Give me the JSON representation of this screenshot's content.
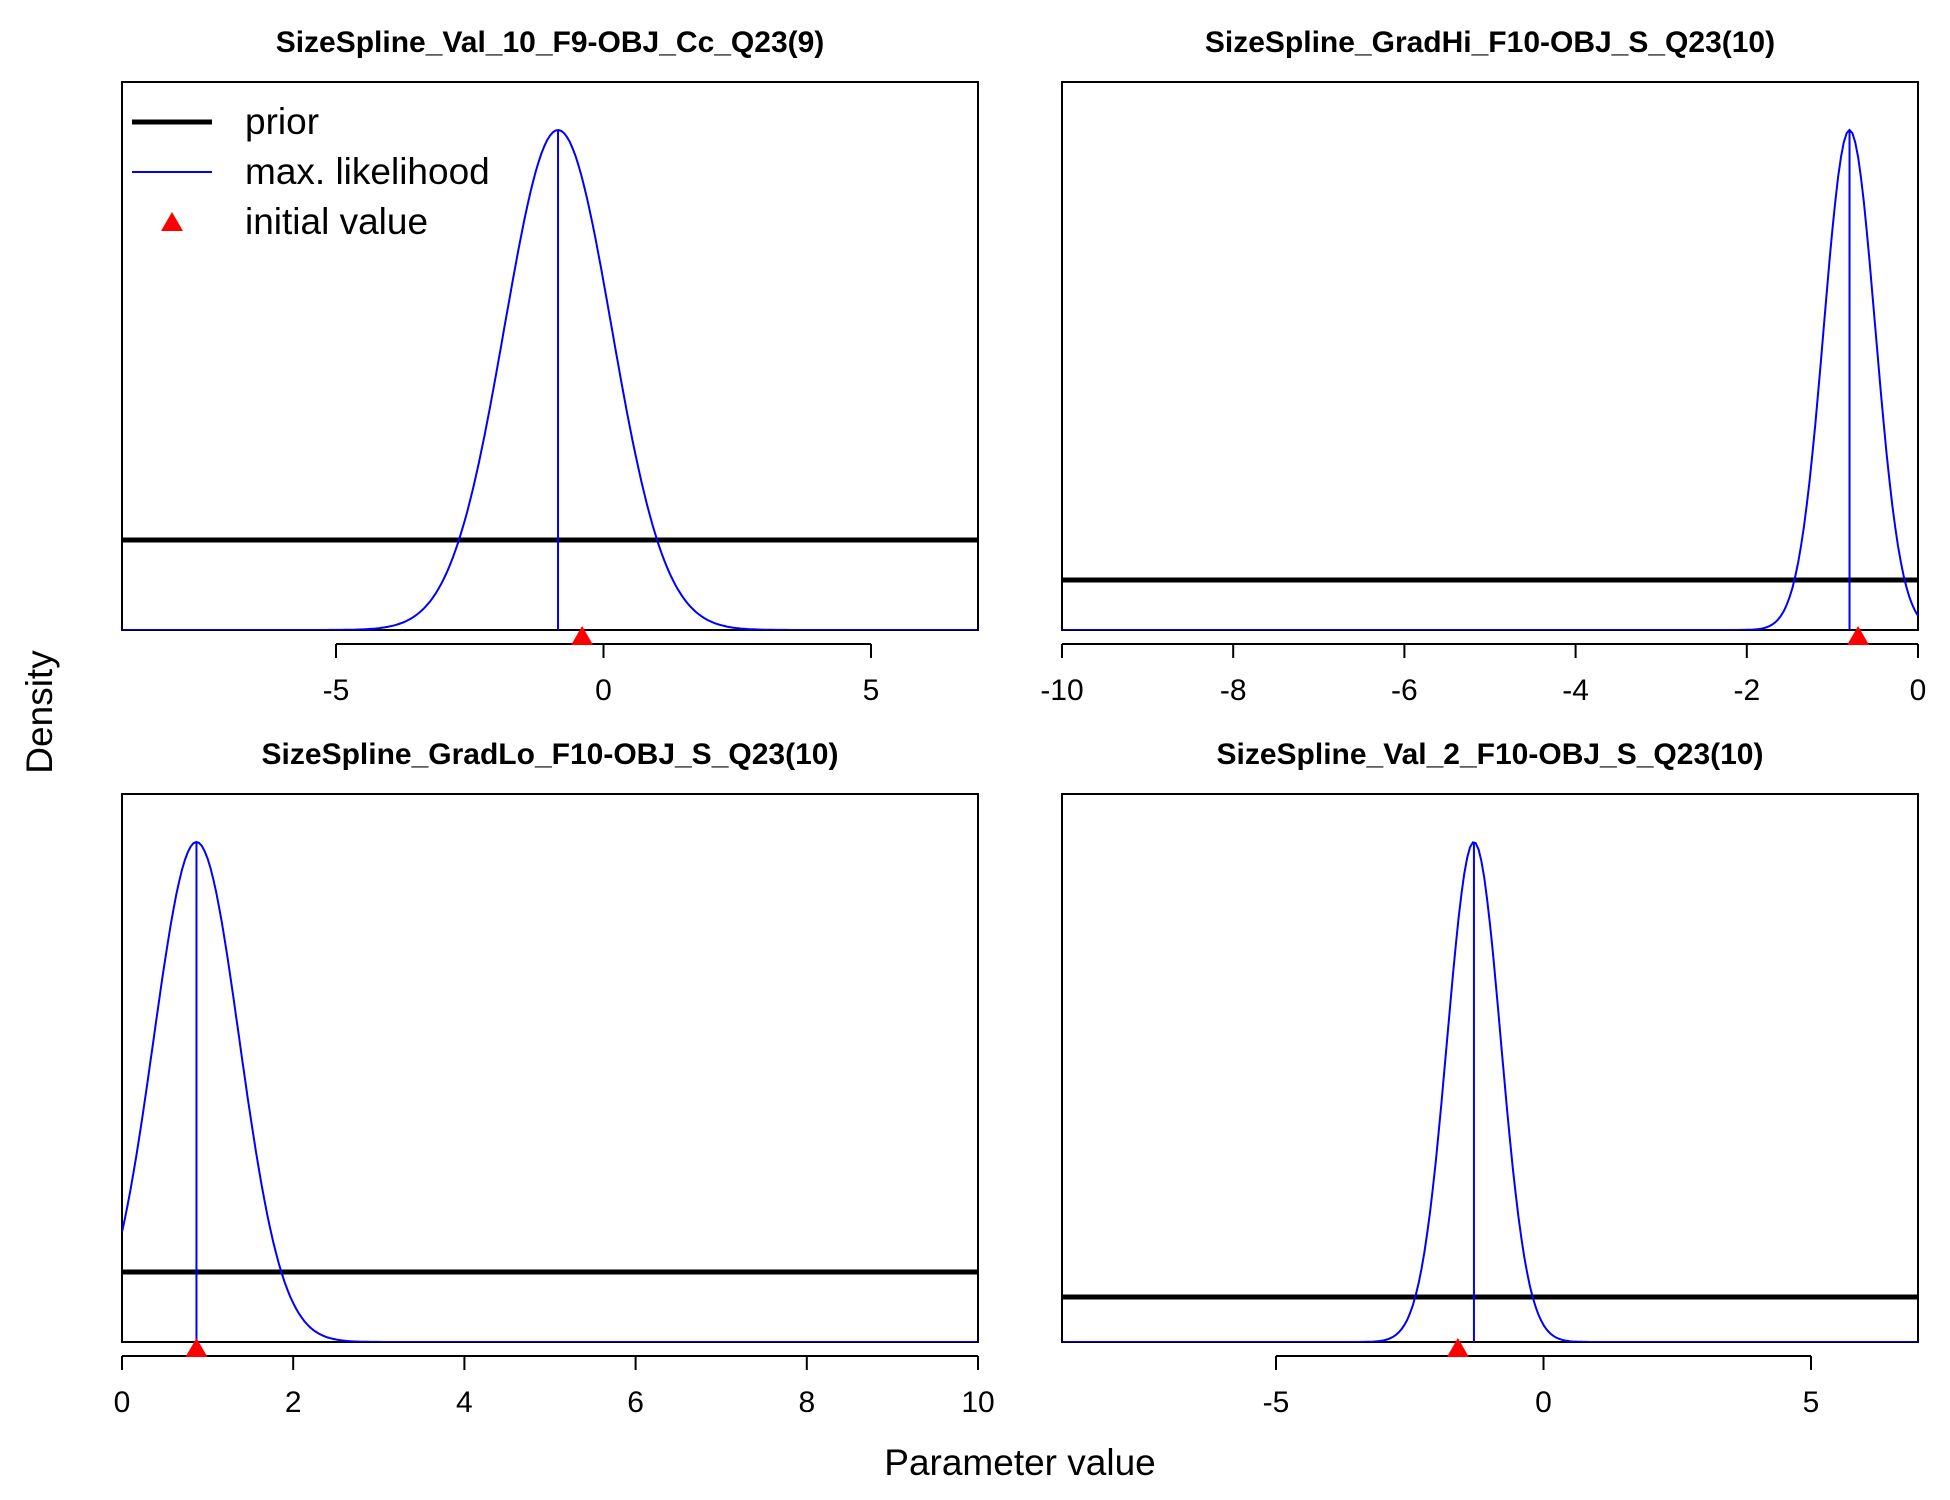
{
  "ylabel": "Density",
  "xlabel": "Parameter value",
  "legend": {
    "placement": "top-left of first panel",
    "items": [
      {
        "label": "prior",
        "color": "#000000"
      },
      {
        "label": "max. likelihood",
        "color": "#0000ff"
      },
      {
        "label": "initial value",
        "color": "#ff0000"
      }
    ]
  },
  "chart_data": [
    {
      "type": "line",
      "title": "SizeSpline_Val_10_F9-OBJ_Cc_Q23(9)",
      "xlim": [
        -9,
        7
      ],
      "xticks": [
        -5,
        0,
        5
      ],
      "prior_level": 0.18,
      "ml": {
        "mean": -0.85,
        "sd": 1.0
      },
      "initial_value": -0.4,
      "legend": true
    },
    {
      "type": "line",
      "title": "SizeSpline_GradHi_F10-OBJ_S_Q23(10)",
      "xlim": [
        -10,
        0
      ],
      "xticks": [
        -10,
        -8,
        -6,
        -4,
        -2,
        0
      ],
      "prior_level": 0.1,
      "ml": {
        "mean": -0.8,
        "sd": 0.3
      },
      "initial_value": -0.7,
      "legend": false
    },
    {
      "type": "line",
      "title": "SizeSpline_GradLo_F10-OBJ_S_Q23(10)",
      "xlim": [
        0,
        10
      ],
      "xticks": [
        0,
        2,
        4,
        6,
        8,
        10
      ],
      "prior_level": 0.14,
      "ml": {
        "mean": 0.87,
        "sd": 0.5
      },
      "initial_value": 0.87,
      "legend": false
    },
    {
      "type": "line",
      "title": "SizeSpline_Val_2_F10-OBJ_S_Q23(10)",
      "xlim": [
        -9,
        7
      ],
      "xticks": [
        -5,
        0,
        5
      ],
      "prior_level": 0.09,
      "ml": {
        "mean": -1.3,
        "sd": 0.5
      },
      "initial_value": -1.6,
      "legend": false
    }
  ]
}
